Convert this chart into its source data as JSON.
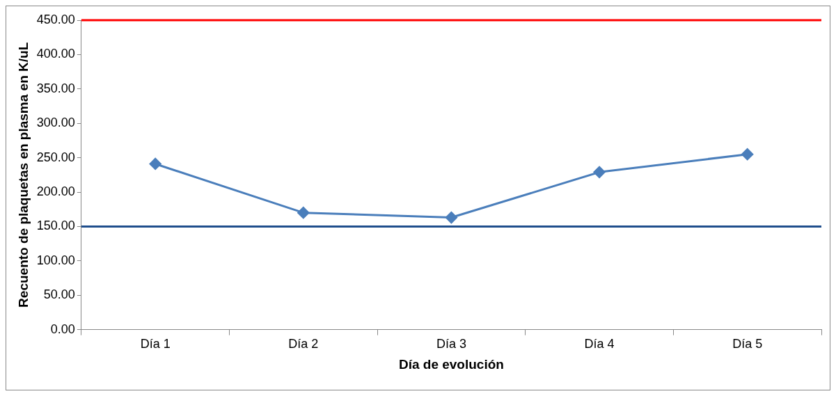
{
  "chart_data": {
    "type": "line",
    "xlabel": "Día de evolución",
    "ylabel": "Recuento de plaquetas en plasma en K/uL",
    "categories": [
      "Día 1",
      "Día 2",
      "Día 3",
      "Día 4",
      "Día 5"
    ],
    "series": [
      {
        "color": "#4a7ebb",
        "values": [
          241,
          170,
          163,
          229,
          255
        ]
      }
    ],
    "ylim": [
      0,
      450
    ],
    "yticks": [
      {
        "value": 0,
        "label": "0.00"
      },
      {
        "value": 50,
        "label": "50.00"
      },
      {
        "value": 100,
        "label": "100.00"
      },
      {
        "value": 150,
        "label": "150.00"
      },
      {
        "value": 200,
        "label": "200.00"
      },
      {
        "value": 250,
        "label": "250.00"
      },
      {
        "value": 300,
        "label": "300.00"
      },
      {
        "value": 350,
        "label": "350.00"
      },
      {
        "value": 400,
        "label": "400.00"
      },
      {
        "value": 450,
        "label": "450.00"
      }
    ],
    "ref_lines": [
      {
        "axis": "y",
        "value": 450,
        "color": "#ff0000"
      },
      {
        "axis": "y",
        "value": 150,
        "color": "#1f4e8c"
      }
    ],
    "grid": false,
    "legend": false,
    "marker": "diamond",
    "line_style": "solid"
  }
}
